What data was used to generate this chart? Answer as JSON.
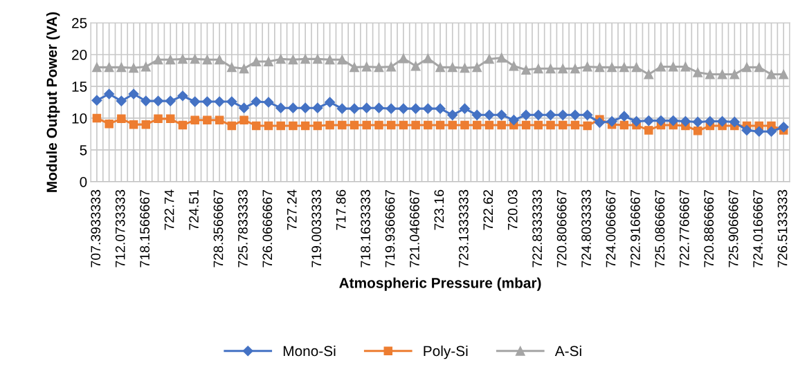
{
  "chart_data": {
    "type": "line",
    "xlabel": "Atmospheric Pressure (mbar)",
    "ylabel": "Module Output Power (VA)",
    "categories": [
      "707.3933333",
      null,
      "712.0733333",
      null,
      "718.1566667",
      null,
      "722.74",
      null,
      "724.51",
      null,
      "728.3566667",
      null,
      "725.7833333",
      null,
      "726.0666667",
      null,
      "727.24",
      null,
      "719.0033333",
      null,
      "717.86",
      null,
      "718.1633333",
      null,
      "719.9366667",
      null,
      "721.0466667",
      null,
      "723.16",
      null,
      "723.1333333",
      null,
      "722.62",
      null,
      "720.03",
      null,
      "722.8333333",
      null,
      "720.8066667",
      null,
      "724.8033333",
      null,
      "724.0066667",
      null,
      "722.9166667",
      null,
      "725.0866667",
      null,
      "722.7766667",
      null,
      "720.8866667",
      null,
      "725.9066667",
      null,
      "724.0166667",
      null,
      "726.5133333"
    ],
    "series": [
      {
        "name": "Mono-Si",
        "color": "#4472c4",
        "marker": "diamond",
        "values": [
          12.8,
          13.8,
          12.7,
          13.8,
          12.7,
          12.7,
          12.7,
          13.5,
          12.6,
          12.6,
          12.6,
          12.6,
          11.6,
          12.6,
          12.5,
          11.6,
          11.6,
          11.6,
          11.6,
          12.5,
          11.5,
          11.5,
          11.6,
          11.6,
          11.5,
          11.5,
          11.5,
          11.5,
          11.5,
          10.5,
          11.5,
          10.5,
          10.5,
          10.5,
          9.7,
          10.5,
          10.5,
          10.5,
          10.5,
          10.5,
          10.5,
          9.3,
          9.5,
          10.3,
          9.5,
          9.6,
          9.6,
          9.6,
          9.5,
          9.4,
          9.5,
          9.5,
          9.4,
          8.1,
          7.9,
          7.9,
          8.6
        ]
      },
      {
        "name": "Poly-Si",
        "color": "#ed7d31",
        "marker": "square",
        "values": [
          10.0,
          9.1,
          9.9,
          9.0,
          9.0,
          9.9,
          9.9,
          8.9,
          9.7,
          9.7,
          9.7,
          8.8,
          9.7,
          8.8,
          8.8,
          8.8,
          8.8,
          8.8,
          8.8,
          8.9,
          8.9,
          8.9,
          8.9,
          8.9,
          8.9,
          8.9,
          8.9,
          8.9,
          8.9,
          8.9,
          8.9,
          8.9,
          8.9,
          8.9,
          8.9,
          8.9,
          8.9,
          8.9,
          8.9,
          8.9,
          8.8,
          9.8,
          9.0,
          8.9,
          8.9,
          8.1,
          8.9,
          8.9,
          8.8,
          8.0,
          8.8,
          8.8,
          8.8,
          8.8,
          8.8,
          8.8,
          8.1
        ]
      },
      {
        "name": "A-Si",
        "color": "#a5a5a5",
        "marker": "triangle",
        "values": [
          18.0,
          18.0,
          18.0,
          17.9,
          18.1,
          19.2,
          19.2,
          19.3,
          19.3,
          19.2,
          19.2,
          18.0,
          17.8,
          18.9,
          18.9,
          19.3,
          19.2,
          19.3,
          19.3,
          19.2,
          19.2,
          18.0,
          18.1,
          18.0,
          18.1,
          19.4,
          18.2,
          19.4,
          18.0,
          18.0,
          17.9,
          18.0,
          19.3,
          19.5,
          18.2,
          17.6,
          17.8,
          17.8,
          17.8,
          17.8,
          18.1,
          18.0,
          18.0,
          18.0,
          18.0,
          16.9,
          18.1,
          18.1,
          18.1,
          17.2,
          16.9,
          16.9,
          16.9,
          18.0,
          18.0,
          16.9,
          16.9
        ]
      }
    ],
    "ylim": [
      0,
      25
    ],
    "yticks": [
      0,
      5,
      10,
      15,
      20,
      25
    ],
    "grid": true,
    "legend": "bottom"
  }
}
